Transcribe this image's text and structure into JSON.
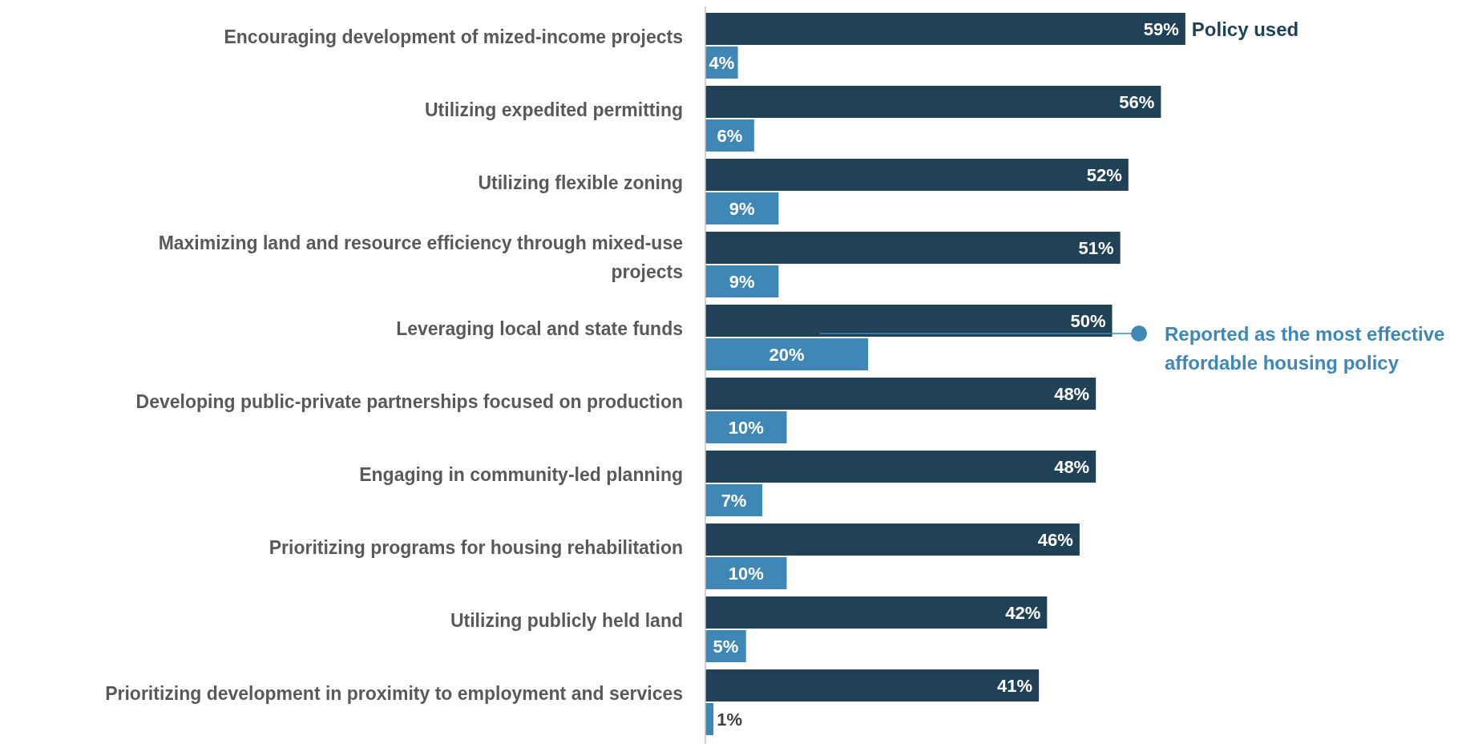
{
  "chart_data": {
    "type": "bar",
    "orientation": "horizontal",
    "legend": "right",
    "categories": [
      "Encouraging development of mized-income projects",
      "Utilizing expedited permitting",
      "Utilizing flexible zoning",
      "Maximizing land and resource efficiency through mixed-use projects",
      "Leveraging local and state funds",
      "Developing public-private partnerships focused on production",
      "Engaging in community-led planning",
      "Prioritizing programs for housing rehabilitation",
      "Utilizing publicly held land",
      "Prioritizing development in proximity to employment and services"
    ],
    "series": [
      {
        "name": "Policy used",
        "color": "#204257",
        "values": [
          59,
          56,
          52,
          51,
          50,
          48,
          48,
          46,
          42,
          41
        ],
        "value_labels": [
          "59%",
          "56%",
          "52%",
          "51%",
          "50%",
          "48%",
          "48%",
          "46%",
          "42%",
          "41%"
        ]
      },
      {
        "name": "Reported as the most effective affordable housing policy",
        "color": "#3f88b6",
        "values": [
          4,
          6,
          9,
          9,
          20,
          10,
          7,
          10,
          5,
          1
        ],
        "value_labels": [
          "4%",
          "6%",
          "9%",
          "9%",
          "20%",
          "10%",
          "7%",
          "10%",
          "5%",
          "1%"
        ]
      }
    ]
  }
}
